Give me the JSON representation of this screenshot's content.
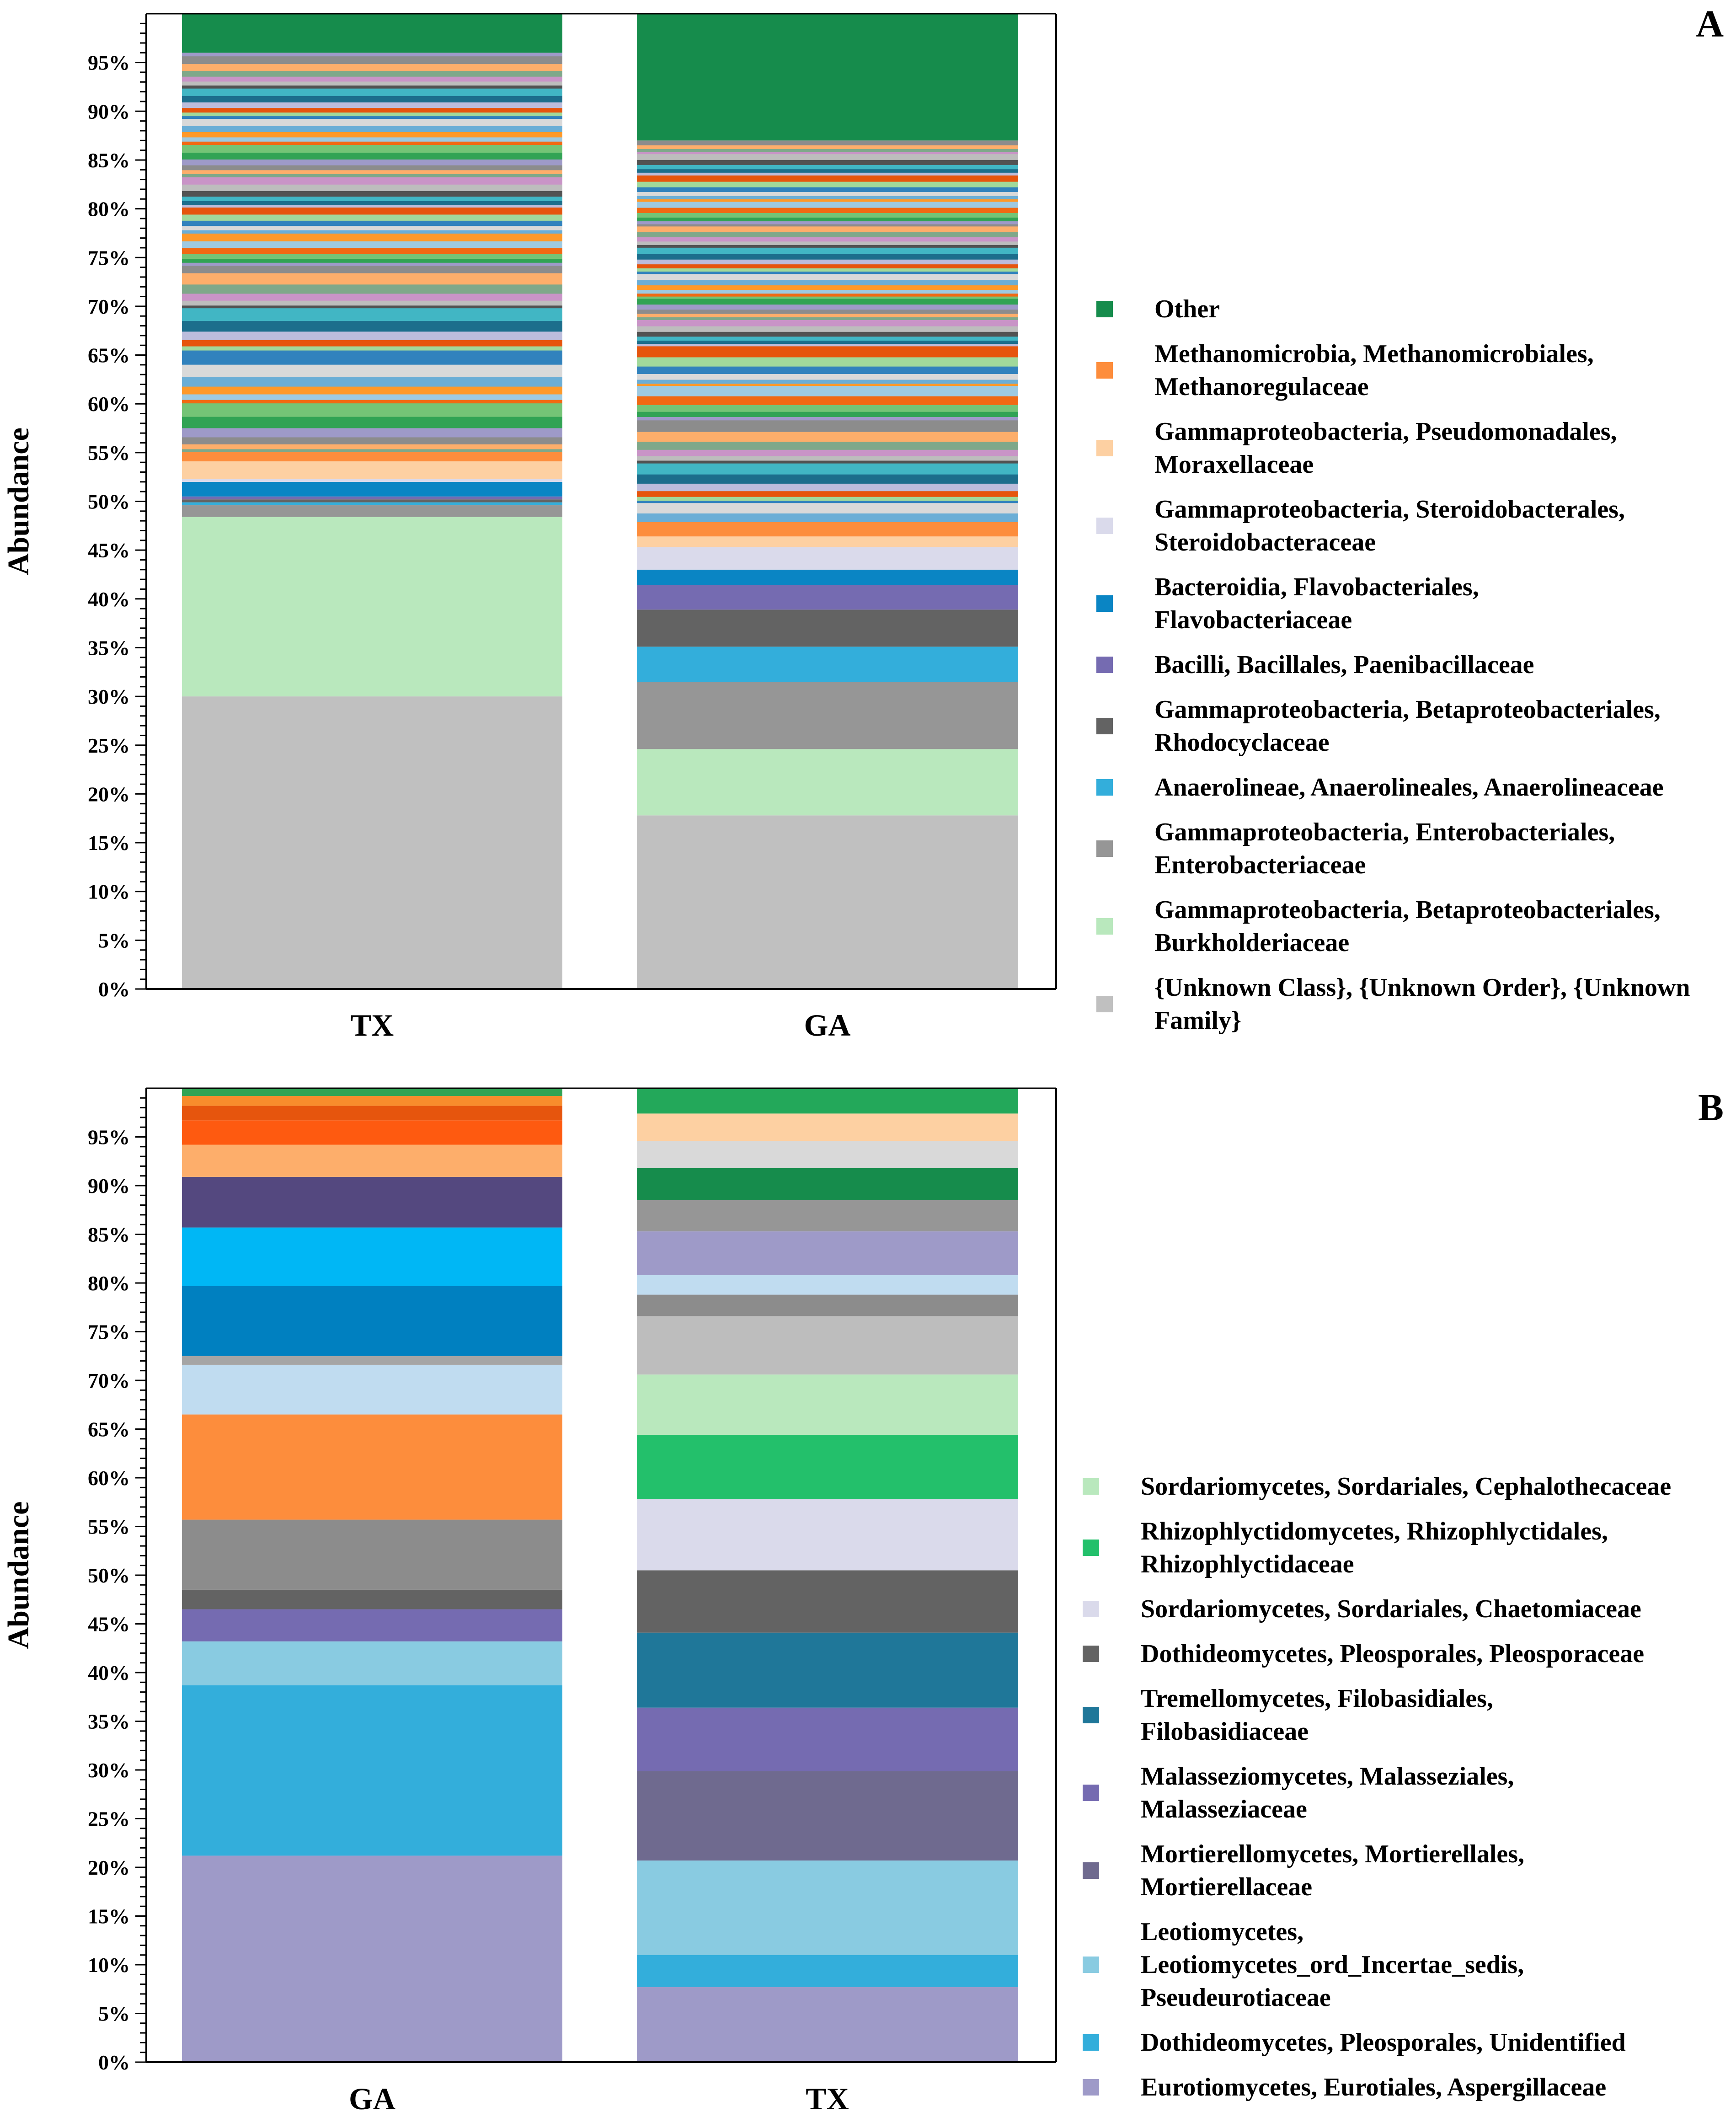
{
  "chart_data": [
    {
      "panel": "A",
      "type": "bar",
      "stacked": true,
      "ylabel": "Abundance",
      "ylim": [
        0,
        100
      ],
      "yticks": [
        "0%",
        "5%",
        "10%",
        "15%",
        "20%",
        "25%",
        "30%",
        "35%",
        "40%",
        "45%",
        "50%",
        "55%",
        "60%",
        "65%",
        "70%",
        "75%",
        "80%",
        "85%",
        "90%",
        "95%"
      ],
      "categories": [
        "TX",
        "GA"
      ],
      "legend_position": "right",
      "series": [
        {
          "name": "{Unknown Class}, {Unknown Order}, {Unknown Family}",
          "color": "#c0c0c0",
          "values": [
            30.0,
            17.8
          ]
        },
        {
          "name": "Gammaproteobacteria, Betaproteobacteriales, Burkholderiaceae",
          "color": "#b9e8bd",
          "values": [
            18.4,
            6.8
          ]
        },
        {
          "name": "Gammaproteobacteria, Enterobacteriales, Enterobacteriaceae",
          "color": "#969696",
          "values": [
            1.2,
            6.9
          ]
        },
        {
          "name": "Anaerolineae, Anaerolineales, Anaerolineaceae",
          "color": "#33aedb",
          "values": [
            0.3,
            3.6
          ]
        },
        {
          "name": "Gammaproteobacteria, Betaproteobacteriales, Rhodocyclaceae",
          "color": "#636363",
          "values": [
            0.3,
            3.8
          ]
        },
        {
          "name": "Bacilli, Bacillales, Paenibacillaceae",
          "color": "#756bb1",
          "values": [
            0.3,
            2.5
          ]
        },
        {
          "name": "Bacteroidia, Flavobacteriales, Flavobacteriaceae",
          "color": "#0a85c4",
          "values": [
            1.5,
            1.6
          ]
        },
        {
          "name": "Gammaproteobacteria, Steroidobacterales, Steroidobacteraceae",
          "color": "#dadaeb",
          "values": [
            0.3,
            2.3
          ]
        },
        {
          "name": "Gammaproteobacteria, Pseudomonadales, Moraxellaceae",
          "color": "#fdd0a2",
          "values": [
            1.8,
            1.1
          ]
        },
        {
          "name": "Methanomicrobia, Methanomicrobiales, Methanoregulaceae",
          "color": "#fd8d3c",
          "values": [
            1.0,
            1.5
          ]
        },
        {
          "name": "Other",
          "color": "#168c4c",
          "values": [
            4.0,
            13.0
          ]
        }
      ],
      "minor_band_colors": [
        "#7fa88a",
        "#9e9ac8",
        "#f16913",
        "#6baed6",
        "#a1d99b",
        "#1c6e8c",
        "#bdbdbd",
        "#fdae6b",
        "#31a354",
        "#9ecae1",
        "#d9d9d9",
        "#e6550d",
        "#41b6c4",
        "#c994c7",
        "#8c8c8c",
        "#74c476",
        "#fe9929",
        "#3182bd",
        "#bcbddc",
        "#525252"
      ]
    },
    {
      "panel": "B",
      "type": "bar",
      "stacked": true,
      "ylabel": "Abundance",
      "ylim": [
        0,
        100
      ],
      "yticks": [
        "0%",
        "5%",
        "10%",
        "15%",
        "20%",
        "25%",
        "30%",
        "35%",
        "40%",
        "45%",
        "50%",
        "55%",
        "60%",
        "65%",
        "70%",
        "75%",
        "80%",
        "85%",
        "90%",
        "95%"
      ],
      "categories": [
        "GA",
        "TX"
      ],
      "legend_position": "right",
      "legend": [
        {
          "name": "Sordariomycetes, Sordariales, Cephalothecaceae",
          "color": "#b9e8bd"
        },
        {
          "name": "Rhizophlyctidomycetes, Rhizophlyctidales, Rhizophlyctidaceae",
          "color": "#23c06b"
        },
        {
          "name": "Sordariomycetes, Sordariales, Chaetomiaceae",
          "color": "#dadaeb"
        },
        {
          "name": "Dothideomycetes, Pleosporales, Pleosporaceae",
          "color": "#636363"
        },
        {
          "name": "Tremellomycetes, Filobasidiales, Filobasidiaceae",
          "color": "#1f7799"
        },
        {
          "name": "Malasseziomycetes, Malasseziales, Malasseziaceae",
          "color": "#756bb1"
        },
        {
          "name": "Mortierellomycetes, Mortierellales, Mortierellaceae",
          "color": "#6f6a8f"
        },
        {
          "name": "Leotiomycetes, Leotiomycetes_ord_Incertae_sedis, Pseudeurotiaceae",
          "color": "#89cbe1"
        },
        {
          "name": "Dothideomycetes, Pleosporales, Unidentified",
          "color": "#33aedb"
        },
        {
          "name": "Eurotiomycetes, Eurotiales, Aspergillaceae",
          "color": "#9e9ac8"
        }
      ],
      "stacks": [
        [
          {
            "value": 21.2,
            "color": "#9e9ac8"
          },
          {
            "value": 17.5,
            "color": "#33aedb"
          },
          {
            "value": 4.5,
            "color": "#89cbe1"
          },
          {
            "value": 3.3,
            "color": "#756bb1"
          },
          {
            "value": 2.0,
            "color": "#636363"
          },
          {
            "value": 7.2,
            "color": "#8c8c8c"
          },
          {
            "value": 10.8,
            "color": "#fd8d3c"
          },
          {
            "value": 5.1,
            "color": "#c0dcf0"
          },
          {
            "value": 0.9,
            "color": "#a5a5a5"
          },
          {
            "value": 7.2,
            "color": "#0080c0"
          },
          {
            "value": 6.0,
            "color": "#00b7f5"
          },
          {
            "value": 5.2,
            "color": "#54487f"
          },
          {
            "value": 3.3,
            "color": "#fdae6b"
          },
          {
            "value": 2.5,
            "color": "#fe5a10"
          },
          {
            "value": 1.5,
            "color": "#e6550d"
          },
          {
            "value": 1.0,
            "color": "#f88c2c"
          },
          {
            "value": 0.8,
            "color": "#31a354"
          }
        ],
        [
          {
            "value": 7.7,
            "color": "#9e9ac8"
          },
          {
            "value": 3.3,
            "color": "#33aedb"
          },
          {
            "value": 9.7,
            "color": "#89cbe1"
          },
          {
            "value": 9.2,
            "color": "#6f6a8f"
          },
          {
            "value": 6.5,
            "color": "#756bb1"
          },
          {
            "value": 7.7,
            "color": "#1f7799"
          },
          {
            "value": 6.4,
            "color": "#636363"
          },
          {
            "value": 7.3,
            "color": "#dadaeb"
          },
          {
            "value": 6.6,
            "color": "#23c06b"
          },
          {
            "value": 6.2,
            "color": "#b9e8bd"
          },
          {
            "value": 6.0,
            "color": "#bdbdbd"
          },
          {
            "value": 2.2,
            "color": "#8c8c8c"
          },
          {
            "value": 2.0,
            "color": "#c0dcf0"
          },
          {
            "value": 4.5,
            "color": "#9e9ac8"
          },
          {
            "value": 3.2,
            "color": "#969696"
          },
          {
            "value": 3.3,
            "color": "#168c4c"
          },
          {
            "value": 2.8,
            "color": "#d9d9d9"
          },
          {
            "value": 2.8,
            "color": "#fdd0a2"
          },
          {
            "value": 2.6,
            "color": "#23a85a"
          }
        ]
      ]
    }
  ]
}
